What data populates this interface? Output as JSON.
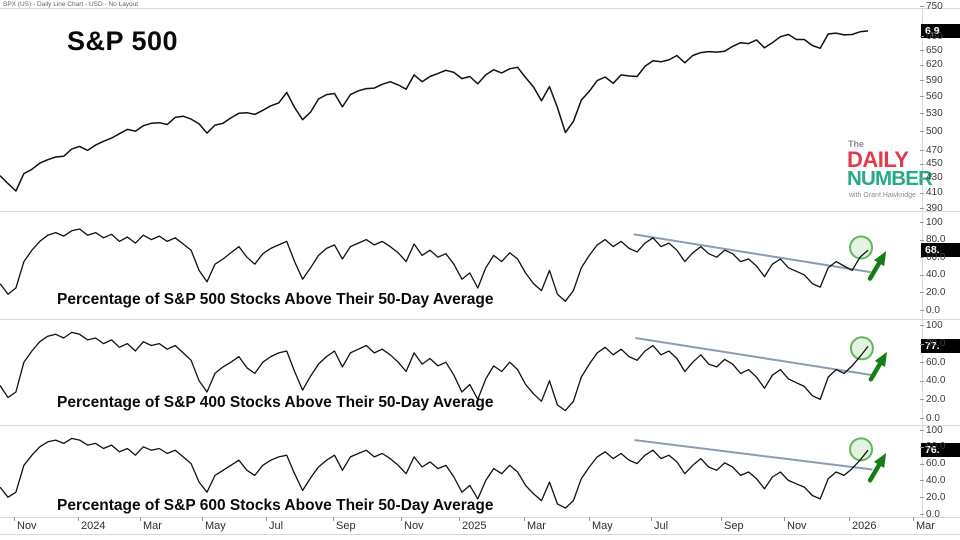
{
  "window": {
    "header": "SPX (US) - Daily Line Chart - USD - No Layout"
  },
  "logo": {
    "line1": "The",
    "line2": "DAILY",
    "line3": "NUMBER",
    "byline": "with Grant Hawkridge",
    "color_red": "#e23b4e",
    "color_teal": "#25ab85"
  },
  "colors": {
    "series_line": "#111111",
    "trendline": "#8093aa",
    "arrow_green": "#177d17",
    "circle_stroke": "#63b563",
    "circle_fill": "#cdeac5",
    "badge_bg": "#000000",
    "badge_fg": "#ffffff"
  },
  "x_axis": {
    "labels": [
      "Nov",
      "2024",
      "Mar",
      "May",
      "Jul",
      "Sep",
      "Nov",
      "2025",
      "Mar",
      "May",
      "Jul",
      "Sep",
      "Nov",
      "2026",
      "Mar"
    ]
  },
  "chart_data": [
    {
      "type": "line",
      "title": "S&P 500",
      "scale": "log",
      "y_range": [
        390,
        750
      ],
      "y_axis_labels": [
        "750",
        "680",
        "650",
        "620",
        "590",
        "560",
        "530",
        "500",
        "470",
        "450",
        "430",
        "410",
        "390"
      ],
      "last_value_badge": "6,9",
      "values": [
        433,
        422,
        412,
        436,
        442,
        451,
        456,
        460,
        461,
        472,
        476,
        470,
        478,
        484,
        489,
        496,
        503,
        500,
        509,
        513,
        514,
        511,
        523,
        525,
        520,
        512,
        497,
        510,
        513,
        522,
        530,
        531,
        528,
        535,
        543,
        548,
        567,
        540,
        519,
        532,
        555,
        563,
        565,
        541,
        563,
        570,
        574,
        575,
        582,
        587,
        581,
        573,
        600,
        587,
        597,
        603,
        609,
        605,
        593,
        597,
        583,
        600,
        610,
        604,
        612,
        615,
        595,
        577,
        552,
        578,
        540,
        498,
        516,
        553,
        569,
        589,
        596,
        584,
        600,
        598,
        597,
        617,
        628,
        626,
        630,
        639,
        624,
        639,
        645,
        647,
        646,
        648,
        658,
        666,
        664,
        672,
        655,
        666,
        679,
        684,
        673,
        673,
        660,
        654,
        685,
        687,
        683,
        684,
        690,
        692
      ]
    },
    {
      "type": "line",
      "title": "Percentage of S&P 500 Stocks Above Their 50-Day Average",
      "scale": "linear",
      "y_range": [
        0,
        100
      ],
      "y_axis_labels": [
        "100",
        "80.0",
        "60.0",
        "40.0",
        "20.0",
        "0.0"
      ],
      "last_value_badge": "68.",
      "values": [
        30,
        18,
        25,
        55,
        68,
        78,
        85,
        88,
        84,
        90,
        92,
        85,
        88,
        82,
        86,
        78,
        83,
        76,
        85,
        80,
        84,
        78,
        82,
        75,
        68,
        45,
        32,
        52,
        58,
        65,
        72,
        60,
        52,
        64,
        70,
        74,
        78,
        55,
        35,
        48,
        62,
        70,
        74,
        58,
        72,
        76,
        80,
        74,
        78,
        72,
        65,
        55,
        75,
        62,
        68,
        60,
        64,
        52,
        35,
        42,
        25,
        48,
        62,
        55,
        65,
        58,
        42,
        30,
        22,
        45,
        18,
        10,
        22,
        48,
        62,
        74,
        80,
        72,
        78,
        70,
        66,
        76,
        82,
        72,
        76,
        68,
        55,
        65,
        72,
        64,
        60,
        68,
        64,
        55,
        58,
        50,
        38,
        52,
        58,
        48,
        44,
        40,
        30,
        26,
        48,
        55,
        50,
        45,
        60,
        68
      ],
      "trendline": {
        "x1_frac": 0.73,
        "v1": 86,
        "x2_frac": 1.003,
        "v2": 43
      },
      "highlight_circle": {
        "x_frac": 0.992,
        "v": 71
      },
      "arrow": "up-right"
    },
    {
      "type": "line",
      "title": "Percentage of S&P 400 Stocks Above Their 50-Day Average",
      "scale": "linear",
      "y_range": [
        0,
        100
      ],
      "y_axis_labels": [
        "100",
        "80.0",
        "60.0",
        "40.0",
        "20.0",
        "0.0"
      ],
      "last_value_badge": "77.",
      "values": [
        35,
        22,
        28,
        60,
        72,
        82,
        88,
        90,
        86,
        92,
        90,
        84,
        86,
        80,
        84,
        76,
        80,
        72,
        82,
        78,
        80,
        74,
        78,
        70,
        62,
        40,
        28,
        48,
        55,
        60,
        66,
        54,
        48,
        60,
        66,
        70,
        72,
        50,
        30,
        45,
        58,
        66,
        72,
        55,
        70,
        74,
        78,
        70,
        74,
        68,
        60,
        50,
        70,
        58,
        64,
        56,
        60,
        46,
        28,
        36,
        20,
        42,
        56,
        50,
        60,
        52,
        36,
        26,
        18,
        40,
        14,
        8,
        18,
        44,
        58,
        70,
        76,
        68,
        74,
        66,
        62,
        72,
        78,
        68,
        72,
        64,
        50,
        60,
        68,
        58,
        55,
        63,
        58,
        48,
        52,
        44,
        32,
        46,
        52,
        42,
        38,
        34,
        24,
        20,
        44,
        52,
        48,
        56,
        66,
        77
      ],
      "trendline": {
        "x1_frac": 0.732,
        "v1": 86,
        "x2_frac": 1.006,
        "v2": 46
      },
      "highlight_circle": {
        "x_frac": 0.993,
        "v": 75
      },
      "arrow": "up-right"
    },
    {
      "type": "line",
      "title": "Percentage of S&P 600 Stocks Above Their 50-Day Average",
      "scale": "linear",
      "y_range": [
        0,
        100
      ],
      "y_axis_labels": [
        "100",
        "80.0",
        "60.0",
        "40.0",
        "20.0",
        "0.0"
      ],
      "last_value_badge": "76.",
      "values": [
        32,
        20,
        26,
        58,
        70,
        80,
        86,
        88,
        84,
        90,
        88,
        82,
        84,
        78,
        82,
        74,
        78,
        70,
        80,
        76,
        78,
        72,
        76,
        68,
        60,
        38,
        26,
        46,
        52,
        58,
        64,
        52,
        46,
        58,
        64,
        68,
        70,
        48,
        28,
        43,
        56,
        64,
        70,
        52,
        68,
        72,
        76,
        68,
        72,
        66,
        58,
        48,
        68,
        56,
        62,
        54,
        58,
        44,
        26,
        34,
        18,
        40,
        54,
        48,
        58,
        50,
        34,
        24,
        16,
        38,
        12,
        7,
        16,
        42,
        56,
        68,
        74,
        66,
        72,
        64,
        60,
        70,
        76,
        66,
        70,
        62,
        48,
        58,
        66,
        56,
        52,
        61,
        56,
        46,
        50,
        42,
        30,
        44,
        50,
        40,
        36,
        32,
        22,
        18,
        42,
        50,
        46,
        54,
        64,
        76
      ],
      "trendline": {
        "x1_frac": 0.731,
        "v1": 88,
        "x2_frac": 1.005,
        "v2": 53
      },
      "highlight_circle": {
        "x_frac": 0.992,
        "v": 77
      },
      "arrow": "up-right"
    }
  ]
}
